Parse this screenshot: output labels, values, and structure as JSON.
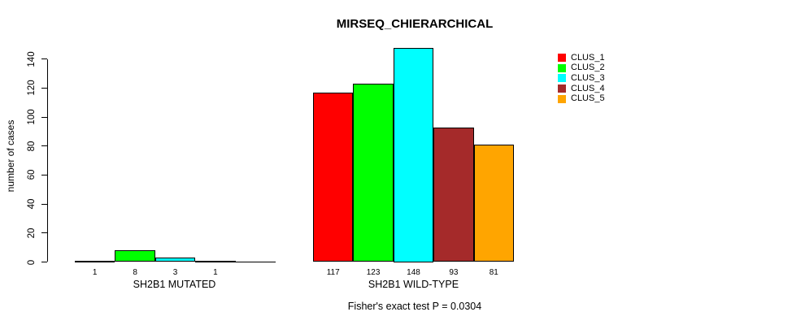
{
  "chart_data": {
    "type": "bar",
    "title": "MIRSEQ_CHIERARCHICAL",
    "ylabel": "number of cases",
    "xlabel": "",
    "ylim": [
      0,
      148
    ],
    "yticks": [
      0,
      20,
      40,
      60,
      80,
      100,
      120,
      140
    ],
    "categories": [
      "SH2B1 MUTATED",
      "SH2B1 WILD-TYPE"
    ],
    "series": [
      {
        "name": "CLUS_1",
        "color": "#FF0000",
        "values": [
          1,
          117
        ]
      },
      {
        "name": "CLUS_2",
        "color": "#00FF00",
        "values": [
          8,
          123
        ]
      },
      {
        "name": "CLUS_3",
        "color": "#00FFFF",
        "values": [
          3,
          148
        ]
      },
      {
        "name": "CLUS_4",
        "color": "#A52A2A",
        "values": [
          1,
          93
        ]
      },
      {
        "name": "CLUS_5",
        "color": "#FFA500",
        "values": [
          0,
          81
        ]
      }
    ],
    "bar_labels": [
      [
        "1",
        "8",
        "3",
        "1",
        ""
      ],
      [
        "117",
        "123",
        "148",
        "93",
        "81"
      ]
    ],
    "legend_entries": [
      "CLUS_1",
      "CLUS_2",
      "CLUS_3",
      "CLUS_4",
      "CLUS_5"
    ],
    "legend_position": "top-right",
    "grid": false,
    "annotation": "Fisher's exact test P = 0.0304"
  },
  "footnote": "Fisher's exact test P = 0.0304"
}
